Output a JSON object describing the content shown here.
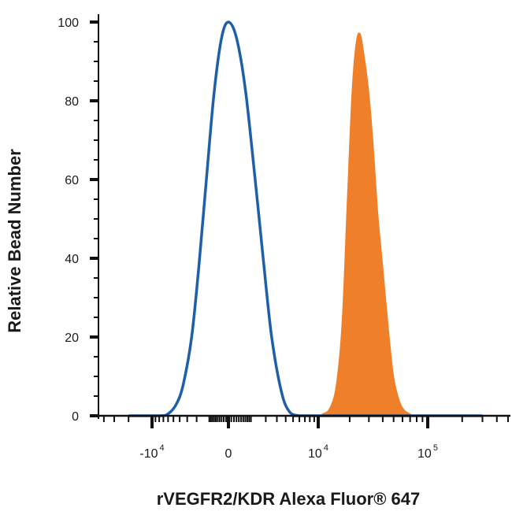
{
  "chart_data": {
    "type": "area",
    "title": "",
    "xlabel": "rVEGFR2/KDR Alexa Fluor® 647",
    "ylabel": "Relative Bead Number",
    "x_scale": "biexponential",
    "ylim": [
      0,
      100
    ],
    "yticks": [
      0,
      20,
      40,
      60,
      80,
      100
    ],
    "xticks": [
      {
        "base": "-10",
        "exp": "4"
      },
      {
        "base": "0",
        "exp": ""
      },
      {
        "base": "10",
        "exp": "4"
      },
      {
        "base": "10",
        "exp": "5"
      }
    ],
    "grid": false,
    "legend": "none",
    "series": [
      {
        "style": "outline",
        "color": "#1f5fa8",
        "x": [
          -20000,
          -8000,
          -6000,
          -4500,
          -3500,
          -2500,
          -1800,
          -1200,
          -700,
          -300,
          0,
          300,
          700,
          1200,
          1800,
          2500,
          3500,
          4500,
          6000,
          8000,
          300000
        ],
        "values": [
          0,
          0,
          0.5,
          3,
          8,
          20,
          38,
          60,
          82,
          96,
          100,
          96,
          83,
          62,
          40,
          20,
          6,
          1,
          0,
          0,
          0
        ]
      },
      {
        "style": "filled",
        "color": "#f07f2a",
        "x": [
          -20000,
          9000,
          11000,
          13000,
          15000,
          17000,
          19000,
          21000,
          23000,
          25000,
          27000,
          30000,
          33000,
          36000,
          40000,
          45000,
          50000,
          56000,
          62000,
          70000,
          80000,
          300000
        ],
        "values": [
          0,
          0,
          0.5,
          2,
          8,
          24,
          55,
          82,
          95,
          97,
          92,
          82,
          68,
          52,
          38,
          22,
          10,
          4,
          1.5,
          0.5,
          0,
          0
        ]
      }
    ]
  }
}
